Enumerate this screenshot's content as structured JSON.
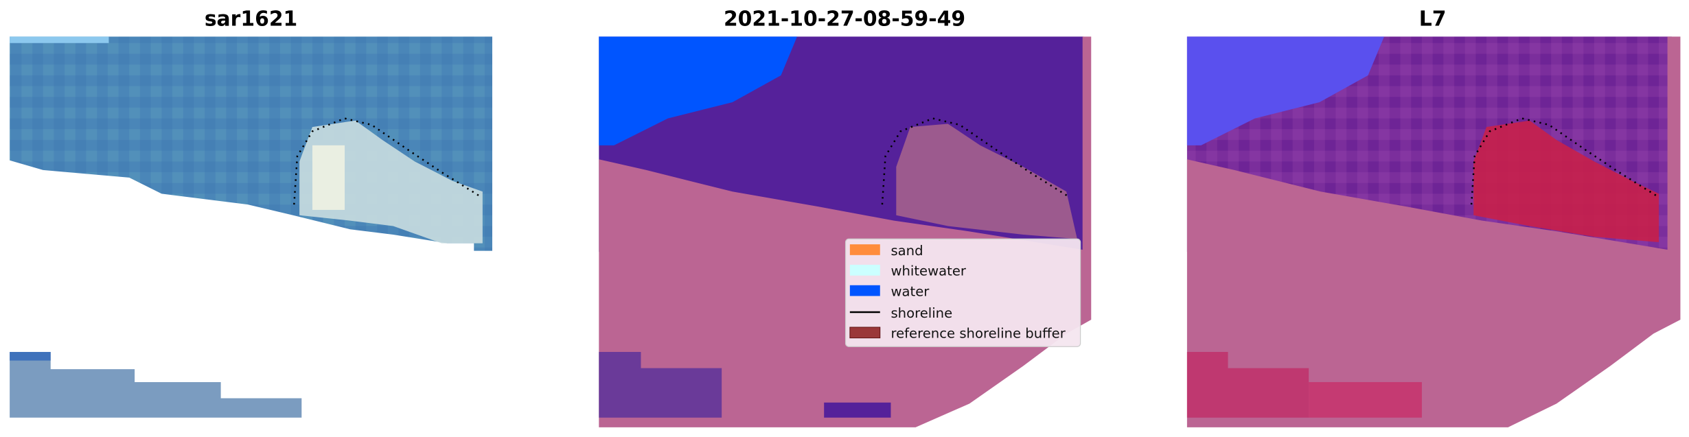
{
  "panels": [
    {
      "title": "sar1621"
    },
    {
      "title": "2021-10-27-08-59-49"
    },
    {
      "title": "L7"
    }
  ],
  "legend": {
    "items": [
      {
        "label": "sand",
        "color": "#ff8c3c",
        "kind": "patch"
      },
      {
        "label": "whitewater",
        "color": "#cbffff",
        "kind": "patch"
      },
      {
        "label": "water",
        "color": "#0055ff",
        "kind": "patch"
      },
      {
        "label": "shoreline",
        "color": "#000000",
        "kind": "line"
      },
      {
        "label": "reference shoreline buffer",
        "color": "#8b1a1a",
        "kind": "patch"
      }
    ]
  },
  "colors": {
    "sea_rgb": "#4a86b8",
    "classified_sand_overlay": "#bb6593",
    "classified_water_overlay": "#55219a",
    "water_blue": "#0055ff",
    "l7_purple": "#7a2b9e",
    "l7_sand_red": "#c8204a"
  }
}
